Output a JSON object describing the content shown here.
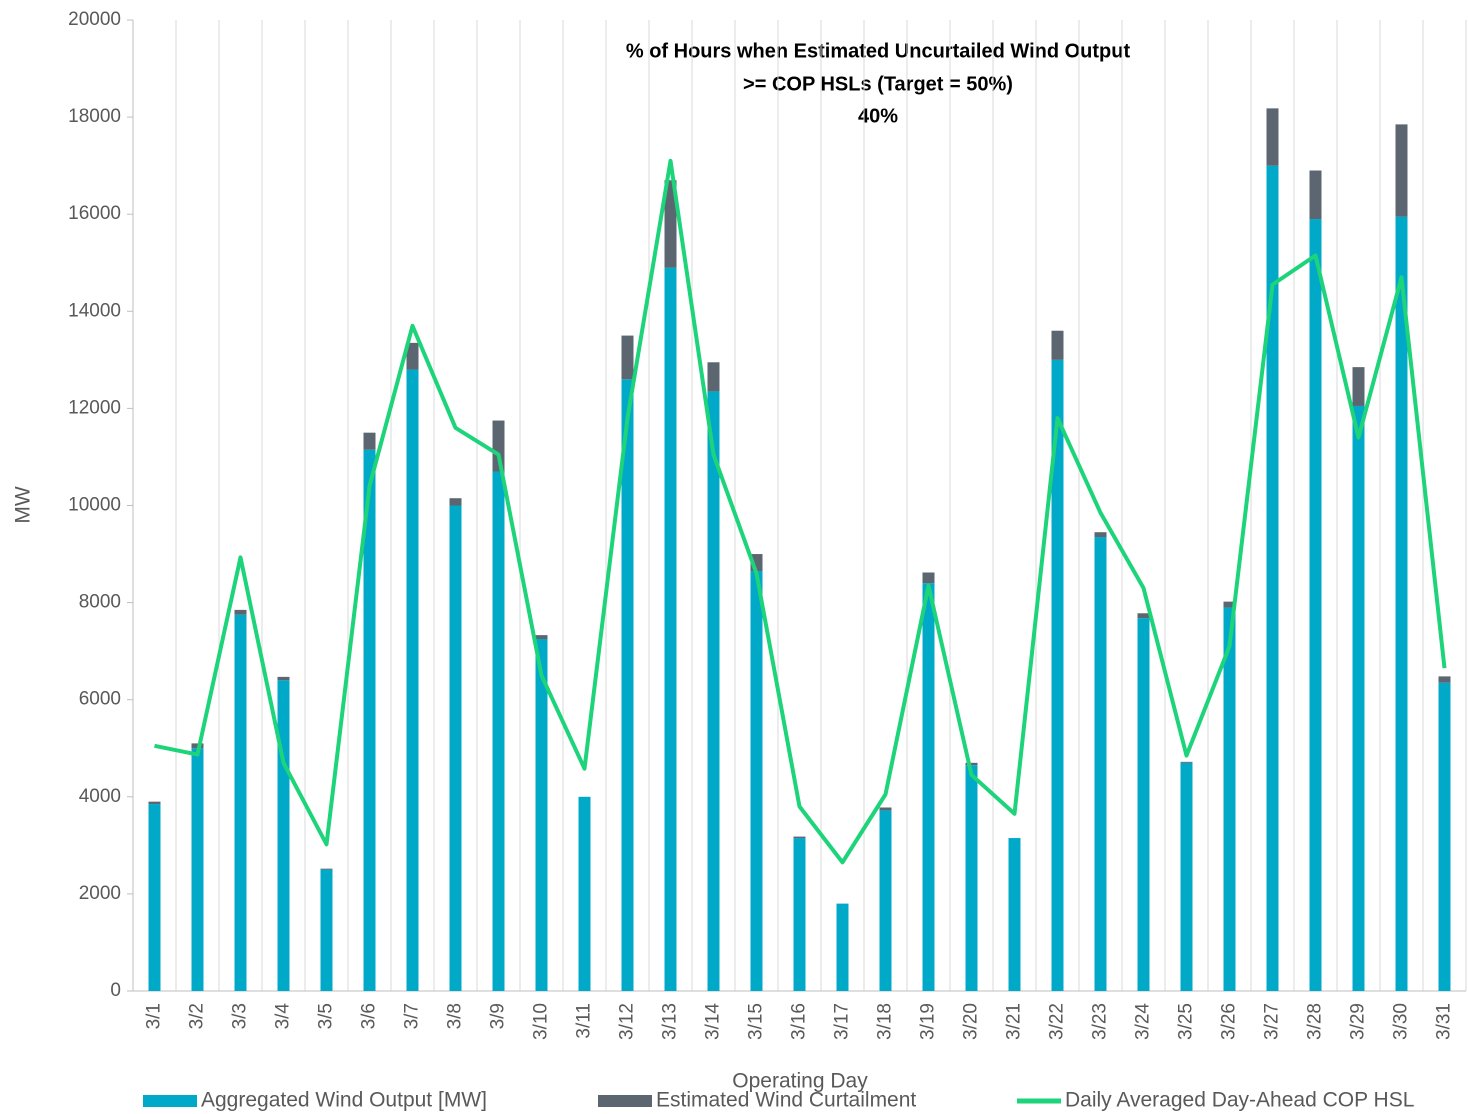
{
  "chart_data": {
    "type": "stacked_bar_line",
    "title": [
      "% of Hours when Estimated Uncurtailed Wind Output",
      ">= COP HSLs (Target = 50%)",
      "40%"
    ],
    "x_label": "Operating Day",
    "y_label": "MW",
    "categories": [
      "3/1",
      "3/2",
      "3/3",
      "3/4",
      "3/5",
      "3/6",
      "3/7",
      "3/8",
      "3/9",
      "3/10",
      "3/11",
      "3/12",
      "3/13",
      "3/14",
      "3/15",
      "3/16",
      "3/17",
      "3/18",
      "3/19",
      "3/20",
      "3/21",
      "3/22",
      "3/23",
      "3/24",
      "3/25",
      "3/26",
      "3/27",
      "3/28",
      "3/29",
      "3/30",
      "3/31"
    ],
    "series": [
      {
        "name": "Aggregated Wind Output [MW]",
        "color": "#00a9c8",
        "kind": "bar",
        "values": [
          3850,
          5000,
          7750,
          6400,
          2500,
          11150,
          12800,
          10000,
          10700,
          7250,
          4000,
          12600,
          14900,
          12350,
          8650,
          3150,
          1800,
          3720,
          8400,
          4650,
          3150,
          13000,
          9350,
          7680,
          4700,
          7900,
          17000,
          15900,
          12050,
          15950,
          6350
        ]
      },
      {
        "name": "Estimated Wind Curtailment",
        "color": "#5b6670",
        "kind": "bar",
        "values": [
          50,
          100,
          100,
          70,
          20,
          350,
          550,
          150,
          1050,
          80,
          0,
          900,
          1800,
          600,
          350,
          30,
          0,
          60,
          220,
          50,
          0,
          600,
          100,
          100,
          20,
          120,
          1180,
          1000,
          800,
          1900,
          130
        ]
      },
      {
        "name": "Daily Averaged Day-Ahead COP HSL",
        "color": "#1ed47a",
        "kind": "line",
        "values": [
          5050,
          4870,
          8930,
          4700,
          3020,
          10400,
          13700,
          11600,
          11050,
          6500,
          4580,
          11800,
          17100,
          11050,
          8600,
          3800,
          2650,
          4050,
          8350,
          4450,
          3650,
          11800,
          9850,
          8300,
          4850,
          7100,
          14550,
          15150,
          11400,
          14700,
          6650
        ]
      }
    ],
    "ylim": [
      0,
      20000
    ],
    "yticks": [
      0,
      2000,
      4000,
      6000,
      8000,
      10000,
      12000,
      14000,
      16000,
      18000,
      20000
    ],
    "grid": "x"
  }
}
